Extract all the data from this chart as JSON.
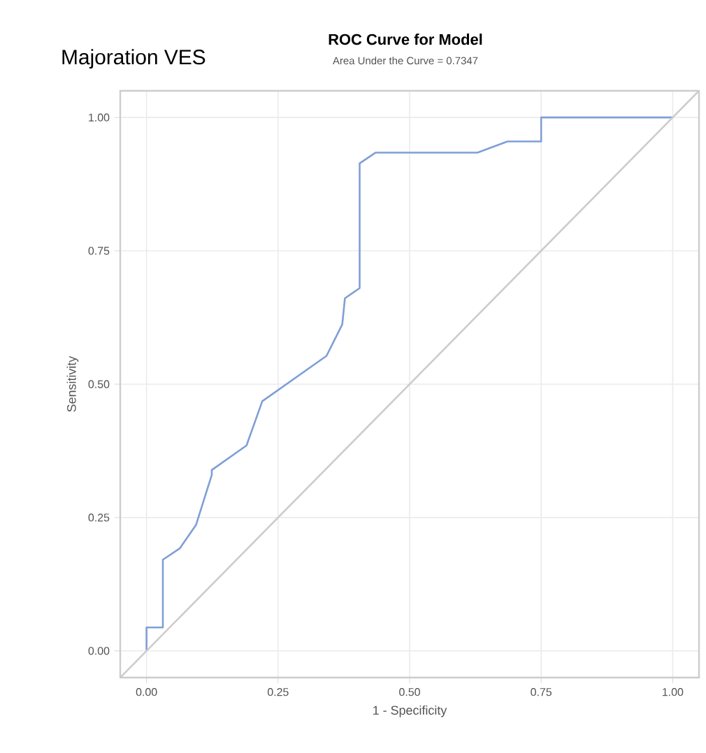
{
  "chart_data": {
    "type": "line",
    "title": "ROC Curve for Model",
    "subtitle": "Area Under the Curve = 0.7347",
    "xlabel": "1 - Specificity",
    "ylabel": "Sensitivity",
    "annotations": [
      "Majoration VES"
    ],
    "series": [
      {
        "color": "#7f9fd6",
        "x": [
          0,
          0,
          0.031,
          0.031,
          0.063,
          0.094,
          0.124,
          0.124,
          0.19,
          0.22,
          0.342,
          0.372,
          0.377,
          0.405,
          0.405,
          0.435,
          0.629,
          0.686,
          0.75,
          0.75,
          1.0
        ],
        "values": [
          0,
          0.044,
          0.044,
          0.171,
          0.192,
          0.236,
          0.33,
          0.339,
          0.385,
          0.468,
          0.553,
          0.612,
          0.661,
          0.68,
          0.914,
          0.934,
          0.934,
          0.955,
          0.955,
          1.0,
          1.0
        ]
      },
      {
        "color": "#cccccc",
        "x": [
          -0.05,
          1.05
        ],
        "values": [
          -0.05,
          1.05
        ]
      }
    ],
    "xlim": [
      -0.05,
      1.05
    ],
    "ylim": [
      -0.05,
      1.05
    ],
    "xticks": [
      {
        "value": 0,
        "label": "0.00"
      },
      {
        "value": 0.25,
        "label": "0.25"
      },
      {
        "value": 0.5,
        "label": "0.50"
      },
      {
        "value": 0.75,
        "label": "0.75"
      },
      {
        "value": 1,
        "label": "1.00"
      }
    ],
    "yticks": [
      {
        "value": 0,
        "label": "0.00"
      },
      {
        "value": 0.25,
        "label": "0.25"
      },
      {
        "value": 0.5,
        "label": "0.50"
      },
      {
        "value": 0.75,
        "label": "0.75"
      },
      {
        "value": 1,
        "label": "1.00"
      }
    ],
    "grid": true,
    "marker": "none",
    "line_style": "solid"
  }
}
